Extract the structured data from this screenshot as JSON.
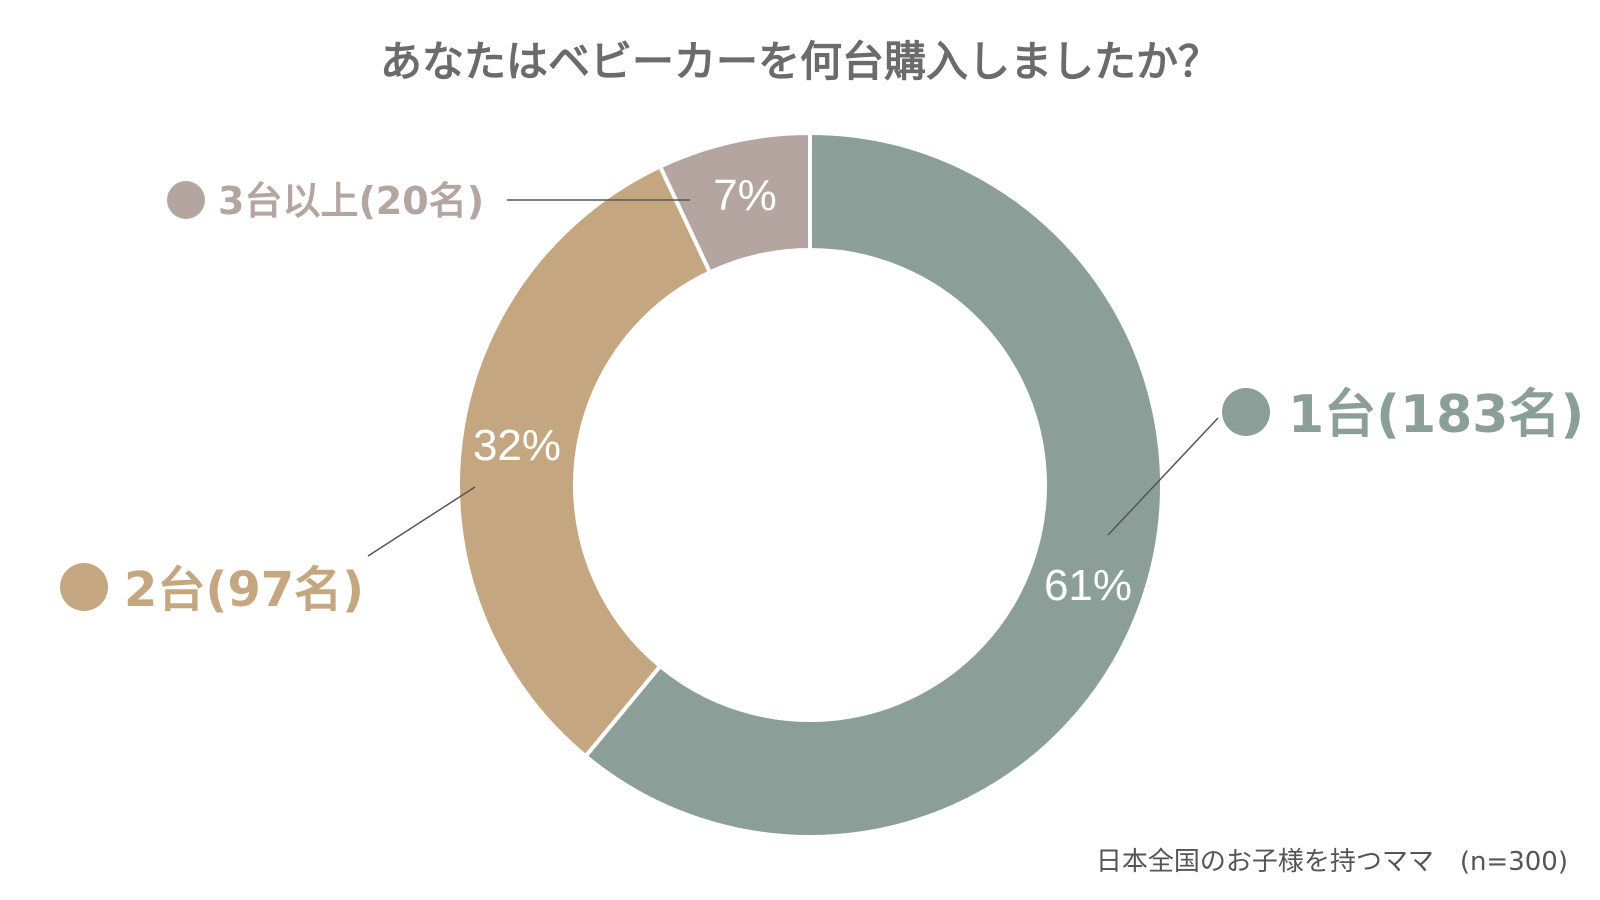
{
  "chart_data": {
    "type": "pie",
    "title": "あなたはベビーカーを何台購入しましたか？",
    "footnote": "日本全国のお子様を持つママ　(n=300)",
    "slices": [
      {
        "label": "1台(183名)",
        "count": 183,
        "value": 61,
        "value_label": "61%",
        "color": "#8c9e98"
      },
      {
        "label": "2台(97名)",
        "count": 97,
        "value": 32,
        "value_label": "32%",
        "color": "#c4a781"
      },
      {
        "label": "3台以上(20名)",
        "count": 20,
        "value": 7,
        "value_label": "7%",
        "color": "#b5a5a0"
      }
    ]
  }
}
